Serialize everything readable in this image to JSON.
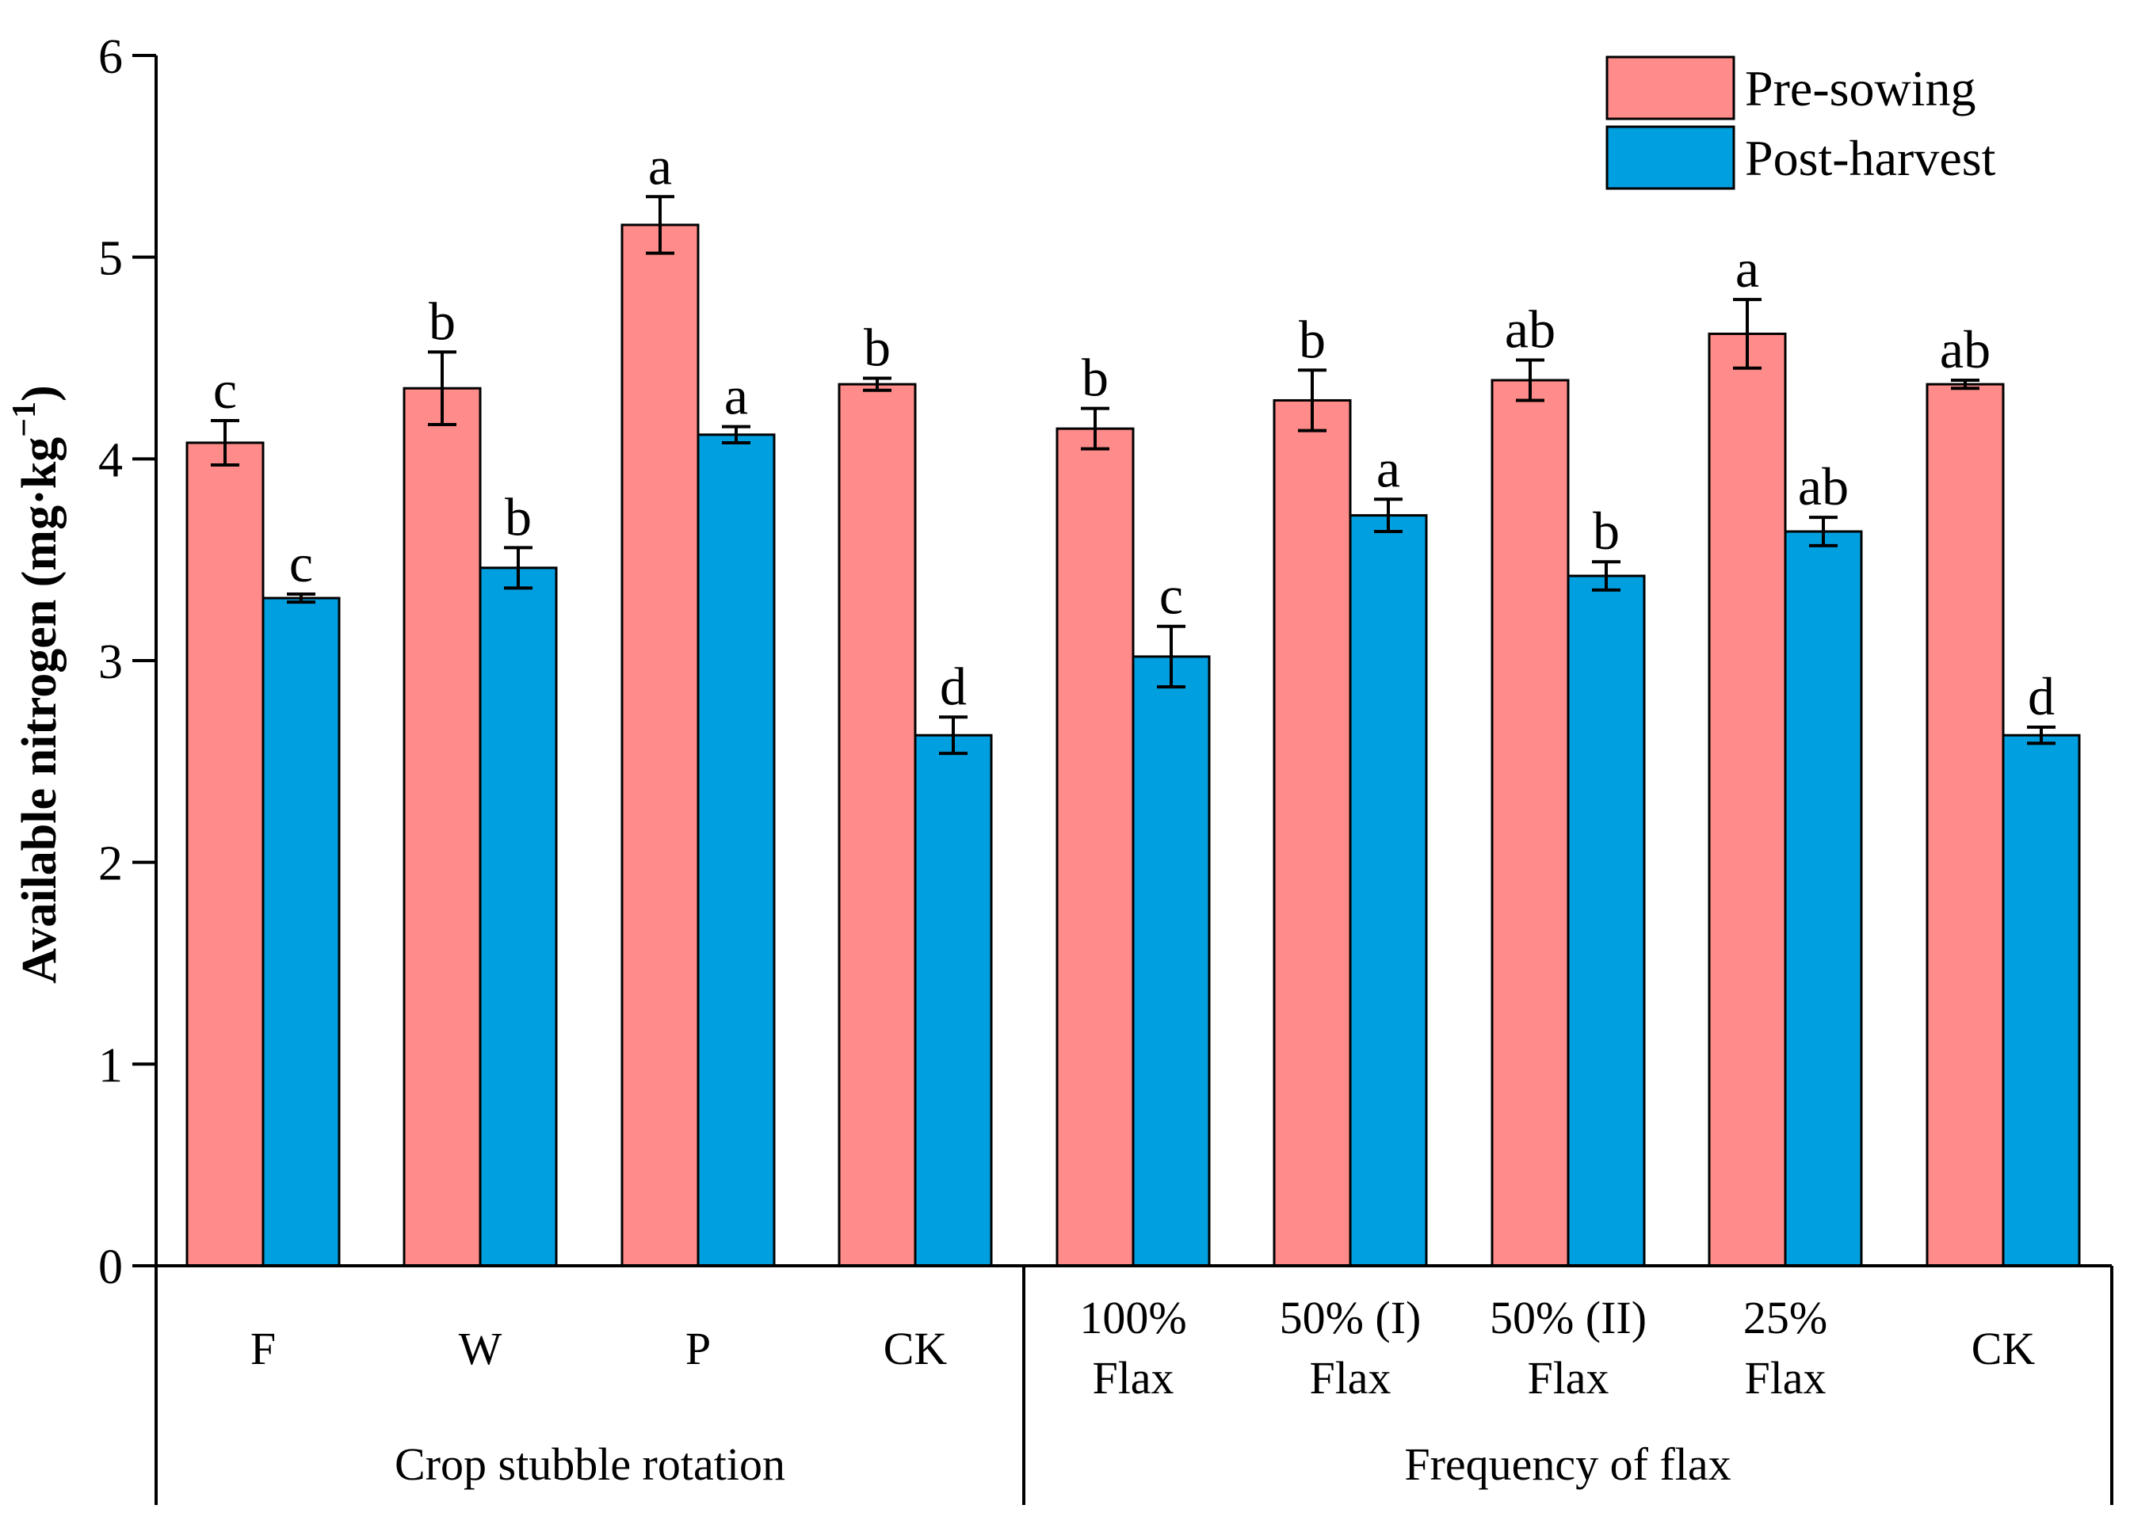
{
  "chart_data": {
    "type": "bar",
    "title": "",
    "xlabel": "",
    "ylabel": "Available nitrogen (mg·kg",
    "ylabel_sup": "−1",
    "ylabel_close": ")",
    "ylim": [
      0,
      6
    ],
    "yticks": [
      0,
      1,
      2,
      3,
      4,
      5,
      6
    ],
    "grid": false,
    "legend_position": "top-right",
    "groups": [
      {
        "label": "Crop stubble rotation",
        "categories": [
          0,
          1,
          2,
          3
        ]
      },
      {
        "label": "Frequency of flax",
        "categories": [
          4,
          5,
          6,
          7,
          8
        ]
      }
    ],
    "categories": [
      {
        "line1": "F",
        "line2": ""
      },
      {
        "line1": "W",
        "line2": ""
      },
      {
        "line1": "P",
        "line2": ""
      },
      {
        "line1": "CK",
        "line2": ""
      },
      {
        "line1": "100%",
        "line2": "Flax"
      },
      {
        "line1": "50% (I)",
        "line2": "Flax"
      },
      {
        "line1": "50% (II)",
        "line2": "Flax"
      },
      {
        "line1": "25%",
        "line2": "Flax"
      },
      {
        "line1": "CK",
        "line2": ""
      }
    ],
    "series": [
      {
        "name": "Pre-sowing",
        "color": "#FF8C8A",
        "values": [
          4.08,
          4.35,
          5.16,
          4.37,
          4.15,
          4.29,
          4.39,
          4.62,
          4.37
        ],
        "errors": [
          0.11,
          0.18,
          0.14,
          0.03,
          0.1,
          0.15,
          0.1,
          0.17,
          0.02
        ],
        "letters": [
          "c",
          "b",
          "a",
          "b",
          "b",
          "b",
          "ab",
          "a",
          "ab"
        ]
      },
      {
        "name": "Post-harvest",
        "color": "#009FE0",
        "values": [
          3.31,
          3.46,
          4.12,
          2.63,
          3.02,
          3.72,
          3.42,
          3.64,
          2.63
        ],
        "errors": [
          0.02,
          0.1,
          0.04,
          0.09,
          0.15,
          0.08,
          0.07,
          0.07,
          0.04
        ],
        "letters": [
          "c",
          "b",
          "a",
          "d",
          "c",
          "a",
          "b",
          "ab",
          "d"
        ]
      }
    ]
  }
}
